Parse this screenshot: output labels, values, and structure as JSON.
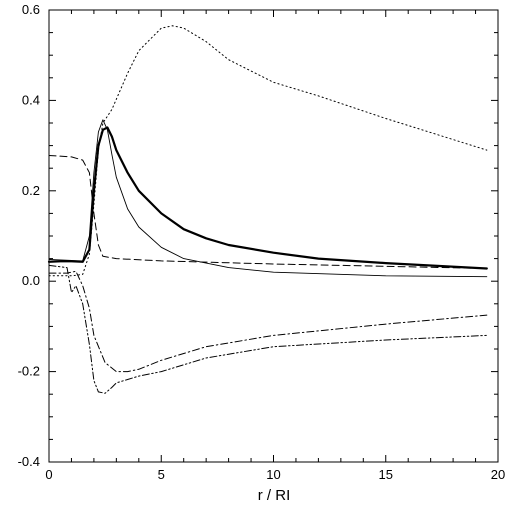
{
  "chart_data": {
    "type": "line",
    "title": "",
    "xlabel": "r / RI",
    "ylabel": "",
    "xlim": [
      0,
      20
    ],
    "ylim": [
      -0.4,
      0.6
    ],
    "x_ticks": [
      0,
      5,
      10,
      15,
      20
    ],
    "x_tick_labels": [
      "0",
      "5",
      "10",
      "15",
      "20"
    ],
    "y_ticks": [
      -0.4,
      -0.2,
      0.0,
      0.2,
      0.4,
      0.6
    ],
    "y_tick_labels": [
      "-0.4",
      "-0.2",
      "0.0",
      "0.2",
      "0.4",
      "0.6"
    ],
    "grid": false,
    "legend": "none",
    "series": [
      {
        "style": "thick-solid",
        "points": [
          [
            0.0,
            0.043
          ],
          [
            0.5,
            0.044
          ],
          [
            1.0,
            0.044
          ],
          [
            1.5,
            0.043
          ],
          [
            1.8,
            0.07
          ],
          [
            2.0,
            0.2
          ],
          [
            2.2,
            0.3
          ],
          [
            2.4,
            0.335
          ],
          [
            2.6,
            0.34
          ],
          [
            2.8,
            0.32
          ],
          [
            3.0,
            0.29
          ],
          [
            3.5,
            0.24
          ],
          [
            4.0,
            0.2
          ],
          [
            5.0,
            0.15
          ],
          [
            6.0,
            0.115
          ],
          [
            7.0,
            0.095
          ],
          [
            8.0,
            0.08
          ],
          [
            10.0,
            0.063
          ],
          [
            12.0,
            0.05
          ],
          [
            15.0,
            0.04
          ],
          [
            19.5,
            0.028
          ]
        ]
      },
      {
        "style": "thin-solid",
        "points": [
          [
            0.0,
            0.048
          ],
          [
            1.0,
            0.046
          ],
          [
            1.5,
            0.045
          ],
          [
            1.8,
            0.1
          ],
          [
            2.0,
            0.24
          ],
          [
            2.2,
            0.33
          ],
          [
            2.4,
            0.357
          ],
          [
            2.6,
            0.335
          ],
          [
            2.8,
            0.28
          ],
          [
            3.0,
            0.23
          ],
          [
            3.5,
            0.16
          ],
          [
            4.0,
            0.12
          ],
          [
            5.0,
            0.075
          ],
          [
            6.0,
            0.05
          ],
          [
            8.0,
            0.03
          ],
          [
            10.0,
            0.02
          ],
          [
            15.0,
            0.012
          ],
          [
            19.5,
            0.01
          ]
        ]
      },
      {
        "style": "dotted",
        "points": [
          [
            0.0,
            0.012
          ],
          [
            1.0,
            0.012
          ],
          [
            1.5,
            0.015
          ],
          [
            1.8,
            0.06
          ],
          [
            2.0,
            0.17
          ],
          [
            2.2,
            0.29
          ],
          [
            2.4,
            0.35
          ],
          [
            2.8,
            0.38
          ],
          [
            3.5,
            0.46
          ],
          [
            4.0,
            0.51
          ],
          [
            5.0,
            0.56
          ],
          [
            5.5,
            0.565
          ],
          [
            6.0,
            0.56
          ],
          [
            7.0,
            0.53
          ],
          [
            8.0,
            0.49
          ],
          [
            10.0,
            0.44
          ],
          [
            12.0,
            0.41
          ],
          [
            15.0,
            0.36
          ],
          [
            19.5,
            0.29
          ]
        ]
      },
      {
        "style": "dashed",
        "points": [
          [
            0.0,
            0.278
          ],
          [
            1.0,
            0.275
          ],
          [
            1.5,
            0.268
          ],
          [
            1.8,
            0.24
          ],
          [
            2.0,
            0.15
          ],
          [
            2.2,
            0.08
          ],
          [
            2.4,
            0.055
          ],
          [
            3.0,
            0.05
          ],
          [
            5.0,
            0.045
          ],
          [
            10.0,
            0.038
          ],
          [
            15.0,
            0.033
          ],
          [
            19.5,
            0.028
          ]
        ]
      },
      {
        "style": "dash-dot",
        "points": [
          [
            0.0,
            0.018
          ],
          [
            0.8,
            0.018
          ],
          [
            1.2,
            0.022
          ],
          [
            1.5,
            -0.01
          ],
          [
            1.8,
            -0.06
          ],
          [
            2.0,
            -0.12
          ],
          [
            2.5,
            -0.18
          ],
          [
            3.0,
            -0.2
          ],
          [
            3.5,
            -0.2
          ],
          [
            4.0,
            -0.195
          ],
          [
            5.0,
            -0.175
          ],
          [
            7.0,
            -0.145
          ],
          [
            10.0,
            -0.12
          ],
          [
            15.0,
            -0.095
          ],
          [
            19.5,
            -0.075
          ]
        ]
      },
      {
        "style": "dash-dot-dot",
        "points": [
          [
            0.0,
            0.035
          ],
          [
            0.8,
            0.03
          ],
          [
            1.0,
            -0.025
          ],
          [
            1.2,
            -0.01
          ],
          [
            1.5,
            -0.05
          ],
          [
            1.8,
            -0.14
          ],
          [
            2.0,
            -0.22
          ],
          [
            2.2,
            -0.245
          ],
          [
            2.5,
            -0.248
          ],
          [
            2.8,
            -0.235
          ],
          [
            3.0,
            -0.225
          ],
          [
            4.0,
            -0.21
          ],
          [
            5.0,
            -0.2
          ],
          [
            7.0,
            -0.17
          ],
          [
            10.0,
            -0.145
          ],
          [
            15.0,
            -0.13
          ],
          [
            19.5,
            -0.12
          ]
        ]
      }
    ]
  }
}
